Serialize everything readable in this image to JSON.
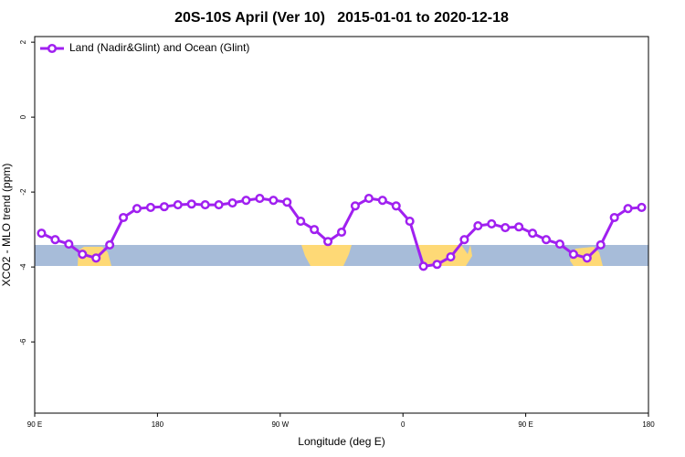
{
  "chart_data": {
    "type": "line",
    "title": "20S-10S April (Ver 10)   2015-01-01 to 2020-12-18",
    "x_label": "Longitude (deg E)",
    "y_label": "XCO2 - MLO trend (ppm)",
    "x": [
      95,
      105,
      115,
      125,
      135,
      145,
      155,
      165,
      175,
      185,
      195,
      205,
      215,
      225,
      235,
      245,
      255,
      265,
      275,
      285,
      295,
      305,
      315,
      325,
      335,
      345,
      355,
      365,
      375,
      385,
      395,
      405,
      415,
      425,
      435,
      445,
      455,
      465,
      475,
      485,
      495,
      505,
      515,
      525,
      535
    ],
    "series": [
      {
        "name": "Land (Nadir&Glint) and Ocean (Glint)",
        "color": "#a020f0",
        "values": [
          -3.1,
          -3.27,
          -3.39,
          -3.66,
          -3.76,
          -3.41,
          -2.68,
          -2.44,
          -2.41,
          -2.39,
          -2.34,
          -2.32,
          -2.34,
          -2.34,
          -2.29,
          -2.22,
          -2.17,
          -2.22,
          -2.27,
          -2.78,
          -3.0,
          -3.32,
          -3.07,
          -2.37,
          -2.17,
          -2.22,
          -2.37,
          -2.78,
          -3.98,
          -3.93,
          -3.73,
          -3.27,
          -2.9,
          -2.85,
          -2.95,
          -2.93,
          -3.1,
          -3.27,
          -3.39,
          -3.66,
          -3.76,
          -3.41,
          -2.68,
          -2.44,
          -2.41
        ]
      }
    ],
    "xlim": [
      90,
      540
    ],
    "xticks": [
      {
        "value": 90,
        "label": "90 E"
      },
      180,
      {
        "value": 270,
        "label": "90 W"
      },
      {
        "value": 360,
        "label": "0"
      },
      {
        "value": 450,
        "label": "90 E"
      },
      {
        "value": 540,
        "label": "180"
      }
    ],
    "ylim": [
      -7.9,
      2.15
    ],
    "yticks": [
      -6,
      -4,
      -2,
      0,
      2
    ],
    "legend": "top-left"
  }
}
